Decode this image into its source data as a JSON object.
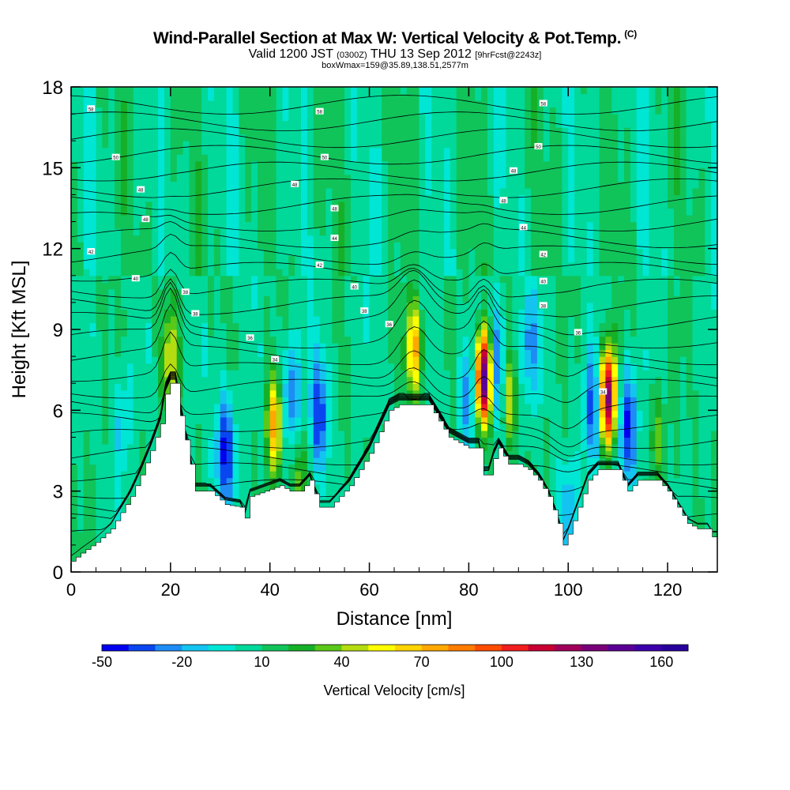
{
  "title": {
    "main": "Wind-Parallel Section at Max W: Vertical Velocity & Pot.Temp.",
    "mark": "(C)",
    "valid_prefix": "Valid 1200 JST",
    "valid_z": "(0300Z)",
    "valid_date": "THU 13 Sep 2012",
    "fcst": "[9hrFcst@2243z]",
    "box": "boxWmax=159@35.89,138.51,2577m"
  },
  "chart_data": {
    "type": "heatmap",
    "xlabel": "Distance [nm]",
    "ylabel": "Height [Kft MSL]",
    "xlim": [
      0,
      130
    ],
    "ylim": [
      0,
      18
    ],
    "x_ticks": [
      0,
      20,
      40,
      60,
      80,
      100,
      120
    ],
    "y_ticks": [
      0,
      3,
      6,
      9,
      12,
      15,
      18
    ],
    "colorbar": {
      "label": "Vertical Velocity [cm/s]",
      "tick_labels": [
        "-50",
        "-20",
        "10",
        "40",
        "70",
        "100",
        "130",
        "160"
      ],
      "tick_values": [
        -50,
        -20,
        10,
        40,
        70,
        100,
        130,
        160
      ],
      "min": -50,
      "max": 170,
      "step": 10,
      "colors": [
        "#0000f0",
        "#0a46f0",
        "#1e8cf5",
        "#14c4f0",
        "#00e6d4",
        "#00d99a",
        "#10c45a",
        "#16b028",
        "#5ac818",
        "#b4dc10",
        "#ffff00",
        "#ffd400",
        "#ffa800",
        "#ff7c00",
        "#ff4c00",
        "#f01e1e",
        "#c80032",
        "#a0005a",
        "#780078",
        "#5a0096",
        "#3c00aa",
        "#28009b"
      ]
    },
    "terrain_kft": [
      [
        0,
        0.4
      ],
      [
        2,
        0.7
      ],
      [
        5,
        1.1
      ],
      [
        8,
        1.6
      ],
      [
        10,
        2.2
      ],
      [
        12,
        2.8
      ],
      [
        14,
        3.6
      ],
      [
        16,
        4.5
      ],
      [
        18,
        5.5
      ],
      [
        19,
        6.6
      ],
      [
        20,
        7.0
      ],
      [
        21,
        7.0
      ],
      [
        22,
        5.8
      ],
      [
        24,
        4.0
      ],
      [
        25,
        3.0
      ],
      [
        28,
        3.0
      ],
      [
        31,
        2.5
      ],
      [
        34,
        2.4
      ],
      [
        35,
        2.0
      ],
      [
        36,
        2.8
      ],
      [
        39,
        3.0
      ],
      [
        42,
        3.2
      ],
      [
        44,
        3.0
      ],
      [
        46,
        3.0
      ],
      [
        48,
        3.4
      ],
      [
        50,
        2.4
      ],
      [
        52,
        2.4
      ],
      [
        54,
        2.8
      ],
      [
        56,
        3.2
      ],
      [
        58,
        3.8
      ],
      [
        60,
        4.4
      ],
      [
        62,
        5.2
      ],
      [
        64,
        6.0
      ],
      [
        66,
        6.2
      ],
      [
        70,
        6.2
      ],
      [
        72,
        6.2
      ],
      [
        74,
        5.6
      ],
      [
        76,
        5.0
      ],
      [
        78,
        4.8
      ],
      [
        80,
        4.6
      ],
      [
        82,
        4.6
      ],
      [
        83,
        3.6
      ],
      [
        84,
        3.6
      ],
      [
        85,
        4.2
      ],
      [
        86,
        4.6
      ],
      [
        88,
        4.0
      ],
      [
        90,
        4.0
      ],
      [
        92,
        3.8
      ],
      [
        94,
        3.4
      ],
      [
        96,
        2.8
      ],
      [
        98,
        1.8
      ],
      [
        99,
        1.0
      ],
      [
        100,
        1.4
      ],
      [
        102,
        2.4
      ],
      [
        104,
        3.4
      ],
      [
        106,
        3.8
      ],
      [
        110,
        3.8
      ],
      [
        112,
        3.0
      ],
      [
        114,
        3.4
      ],
      [
        118,
        3.4
      ],
      [
        120,
        3.0
      ],
      [
        122,
        2.4
      ],
      [
        124,
        1.8
      ],
      [
        126,
        1.6
      ],
      [
        128,
        1.6
      ],
      [
        129,
        1.3
      ],
      [
        130,
        1.3
      ]
    ],
    "updrafts": [
      {
        "x": 20,
        "y": 7.8,
        "peak": 45
      },
      {
        "x": 41,
        "y": 5.5,
        "peak": 75
      },
      {
        "x": 46,
        "y": 3.5,
        "peak": 35
      },
      {
        "x": 69,
        "y": 8.3,
        "peak": 72
      },
      {
        "x": 83,
        "y": 7.2,
        "peak": 159
      },
      {
        "x": 88,
        "y": 6.5,
        "peak": 50
      },
      {
        "x": 108,
        "y": 6.5,
        "peak": 140
      },
      {
        "x": 118,
        "y": 5.0,
        "peak": 30
      }
    ],
    "downdrafts": [
      {
        "x": 31,
        "y": 4.5,
        "peak": -45
      },
      {
        "x": 44,
        "y": 6.5,
        "peak": -35
      },
      {
        "x": 50,
        "y": 5.8,
        "peak": -40
      },
      {
        "x": 80,
        "y": 6.5,
        "peak": -30
      },
      {
        "x": 86,
        "y": 7.5,
        "peak": -40
      },
      {
        "x": 92,
        "y": 8.5,
        "peak": -25
      },
      {
        "x": 105,
        "y": 6.0,
        "peak": -35
      },
      {
        "x": 112,
        "y": 5.5,
        "peak": -45
      },
      {
        "x": 10,
        "y": 5.5,
        "peak": -15
      },
      {
        "x": 100,
        "y": 2.0,
        "peak": -20
      }
    ],
    "theta_contour_labels": [
      {
        "label": "58",
        "x": 4,
        "y": 17.2
      },
      {
        "label": "58",
        "x": 50,
        "y": 17.1
      },
      {
        "label": "58",
        "x": 95,
        "y": 17.4
      },
      {
        "label": "50",
        "x": 9,
        "y": 15.4
      },
      {
        "label": "50",
        "x": 51,
        "y": 15.4
      },
      {
        "label": "50",
        "x": 94,
        "y": 15.8
      },
      {
        "label": "48",
        "x": 14,
        "y": 14.2
      },
      {
        "label": "48",
        "x": 45,
        "y": 14.4
      },
      {
        "label": "48",
        "x": 89,
        "y": 14.9
      },
      {
        "label": "48",
        "x": 15,
        "y": 13.1
      },
      {
        "label": "48",
        "x": 53,
        "y": 13.5
      },
      {
        "label": "48",
        "x": 87,
        "y": 13.8
      },
      {
        "label": "44",
        "x": 53,
        "y": 12.4
      },
      {
        "label": "44",
        "x": 91,
        "y": 12.8
      },
      {
        "label": "42",
        "x": 4,
        "y": 11.9
      },
      {
        "label": "42",
        "x": 50,
        "y": 11.4
      },
      {
        "label": "42",
        "x": 95,
        "y": 11.8
      },
      {
        "label": "40",
        "x": 13,
        "y": 10.9
      },
      {
        "label": "40",
        "x": 57,
        "y": 10.6
      },
      {
        "label": "40",
        "x": 95,
        "y": 10.8
      },
      {
        "label": "38",
        "x": 23,
        "y": 10.4
      },
      {
        "label": "38",
        "x": 59,
        "y": 9.7
      },
      {
        "label": "38",
        "x": 95,
        "y": 9.9
      },
      {
        "label": "38",
        "x": 25,
        "y": 9.6
      },
      {
        "label": "36",
        "x": 36,
        "y": 8.7
      },
      {
        "label": "36",
        "x": 64,
        "y": 9.2
      },
      {
        "label": "36",
        "x": 102,
        "y": 8.9
      },
      {
        "label": "34",
        "x": 41,
        "y": 7.9
      },
      {
        "label": "34",
        "x": 107,
        "y": 6.7
      }
    ]
  }
}
